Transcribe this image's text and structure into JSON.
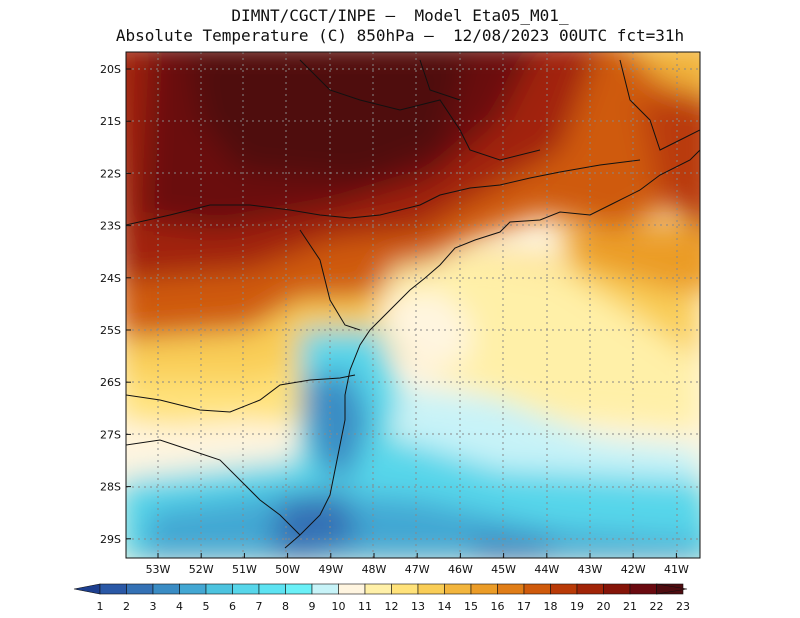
{
  "title": {
    "line1": "DIMNT/CGCT/INPE –  Model Eta05_M01_",
    "line2": "Absolute Temperature (C) 850hPa –  12/08/2023 00UTC fct=31h"
  },
  "axes": {
    "lat_labels": [
      "20S",
      "21S",
      "22S",
      "23S",
      "24S",
      "25S",
      "26S",
      "27S",
      "28S",
      "29S"
    ],
    "lon_labels": [
      "53W",
      "52W",
      "51W",
      "50W",
      "49W",
      "48W",
      "47W",
      "46W",
      "45W",
      "44W",
      "43W",
      "42W",
      "41W"
    ]
  },
  "colorbar": {
    "labels": [
      "1",
      "2",
      "3",
      "4",
      "5",
      "6",
      "7",
      "8",
      "9",
      "10",
      "11",
      "12",
      "13",
      "14",
      "15",
      "16",
      "17",
      "18",
      "19",
      "20",
      "21",
      "22",
      "23"
    ],
    "colors": [
      "#1d3f8f",
      "#2a58a6",
      "#3471b5",
      "#3a8cc4",
      "#43a7d3",
      "#4cc3df",
      "#57d6ea",
      "#5de3f2",
      "#6af0f7",
      "#c7f3f8",
      "#fff5e0",
      "#fff0a8",
      "#ffe27a",
      "#f9cd56",
      "#f2b53d",
      "#eb9c27",
      "#e07d17",
      "#cf5a0b",
      "#b93a07",
      "#a12407",
      "#851408",
      "#6a0a10",
      "#4f0c10"
    ]
  }
}
